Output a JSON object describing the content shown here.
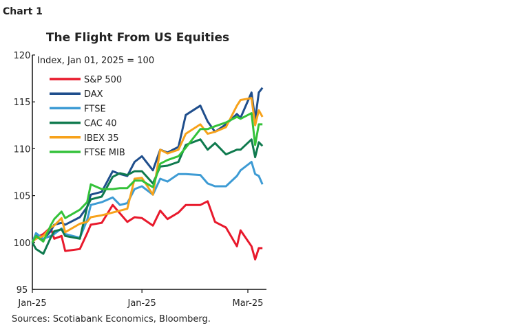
{
  "chart_label": "Chart 1",
  "source": "Sources: Scotiabank Economics, Bloomberg.",
  "chart_data": {
    "type": "line",
    "title": "The Flight From US Equities",
    "subtitle": "Index, Jan 01, 2025 = 100",
    "xlabel": "",
    "ylabel": "",
    "ylim": [
      95,
      120
    ],
    "y_ticks": [
      95,
      100,
      105,
      110,
      115,
      120
    ],
    "xlim": [
      "2025-01-01",
      "2025-03-06"
    ],
    "x_ticks": [
      {
        "date": "2025-01-01",
        "label": "Jan-25"
      },
      {
        "date": "2025-01-31",
        "label": "Jan-25"
      },
      {
        "date": "2025-03-01",
        "label": "Mar-25"
      }
    ],
    "grid": false,
    "legend_position": "top-left",
    "x": [
      "2025-01-01",
      "2025-01-02",
      "2025-01-04",
      "2025-01-06",
      "2025-01-07",
      "2025-01-09",
      "2025-01-10",
      "2025-01-14",
      "2025-01-16",
      "2025-01-17",
      "2025-01-20",
      "2025-01-23",
      "2025-01-25",
      "2025-01-27",
      "2025-01-29",
      "2025-01-31",
      "2025-02-03",
      "2025-02-05",
      "2025-02-07",
      "2025-02-10",
      "2025-02-12",
      "2025-02-16",
      "2025-02-18",
      "2025-02-20",
      "2025-02-23",
      "2025-02-26",
      "2025-02-27",
      "2025-03-02",
      "2025-03-03",
      "2025-03-04",
      "2025-03-05"
    ],
    "series": [
      {
        "name": "S&P 500",
        "color": "#e8192c",
        "values": [
          100,
          100.5,
          100.9,
          101.6,
          100.4,
          100.7,
          99.1,
          99.3,
          101.0,
          101.9,
          102.1,
          104.0,
          103.1,
          102.2,
          102.7,
          102.6,
          101.8,
          103.4,
          102.5,
          103.2,
          104.0,
          104.0,
          104.4,
          102.2,
          101.6,
          99.6,
          101.3,
          99.6,
          98.2,
          99.4,
          99.4
        ]
      },
      {
        "name": "DAX",
        "color": "#1f4e8c",
        "values": [
          100,
          100.9,
          100.3,
          101.2,
          101.9,
          102.1,
          101.9,
          102.7,
          103.8,
          105.1,
          105.4,
          107.6,
          107.3,
          107.1,
          108.6,
          109.2,
          107.7,
          109.9,
          109.6,
          110.2,
          113.6,
          114.6,
          112.9,
          111.8,
          112.6,
          113.7,
          113.3,
          116.0,
          113.1,
          116.0,
          116.5
        ]
      },
      {
        "name": "FTSE",
        "color": "#3d9bd4",
        "values": [
          100,
          101.0,
          100.4,
          100.7,
          100.9,
          101.5,
          100.9,
          100.5,
          102.4,
          104.0,
          104.3,
          104.8,
          104.0,
          104.2,
          105.7,
          106.0,
          105.1,
          106.8,
          106.5,
          107.3,
          107.3,
          107.2,
          106.3,
          106.0,
          106.0,
          107.1,
          107.7,
          108.6,
          107.3,
          107.1,
          106.2
        ]
      },
      {
        "name": "CAC 40",
        "color": "#0f7a4e",
        "values": [
          100,
          99.3,
          98.8,
          100.5,
          101.2,
          101.4,
          100.7,
          100.4,
          103.8,
          104.6,
          104.9,
          107.0,
          107.4,
          107.2,
          107.6,
          107.6,
          106.3,
          108.1,
          108.2,
          108.6,
          110.4,
          111.0,
          109.9,
          110.6,
          109.4,
          109.9,
          109.9,
          111.0,
          109.1,
          110.7,
          110.3
        ]
      },
      {
        "name": "IBEX 35",
        "color": "#f7a21b",
        "values": [
          100.1,
          100.4,
          100.7,
          101.6,
          101.8,
          102.6,
          101.1,
          102.0,
          102.2,
          102.7,
          102.9,
          103.2,
          103.4,
          103.6,
          106.8,
          106.9,
          105.1,
          109.9,
          109.5,
          109.9,
          111.6,
          112.6,
          111.6,
          111.8,
          112.3,
          114.6,
          115.2,
          115.4,
          112.5,
          114.1,
          113.4
        ]
      },
      {
        "name": "FTSE MIB",
        "color": "#34c23a",
        "values": [
          100,
          100.7,
          100.1,
          101.8,
          102.5,
          103.3,
          102.6,
          103.5,
          104.3,
          106.2,
          105.7,
          105.7,
          105.8,
          105.8,
          106.6,
          106.6,
          105.9,
          108.4,
          108.8,
          109.2,
          110.1,
          112.1,
          112.1,
          112.4,
          112.8,
          113.4,
          113.2,
          113.8,
          110.4,
          112.6,
          112.6
        ]
      }
    ]
  }
}
